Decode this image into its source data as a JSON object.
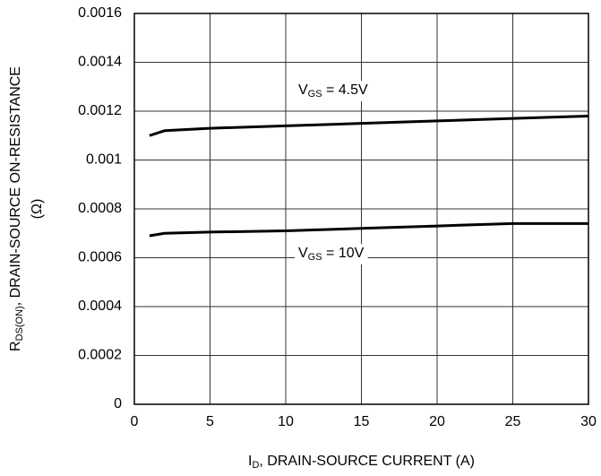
{
  "chart_data": {
    "type": "line",
    "y_label": {
      "main": "R",
      "sub": "DS(ON)",
      "rest": ", DRAIN-SOURCE ON-RESISTANCE",
      "line2": "(Ω)"
    },
    "x_label": {
      "main": "I",
      "sub": "D",
      "rest": ", DRAIN-SOURCE CURRENT (A)"
    },
    "annotations": [
      {
        "main": "V",
        "sub": "GS",
        "rest": " = 4.5V"
      },
      {
        "main": "V",
        "sub": "GS",
        "rest": " = 10V"
      }
    ],
    "x": [
      1,
      2,
      5,
      10,
      15,
      20,
      25,
      30
    ],
    "series": [
      {
        "name": "VGS = 4.5V",
        "color": "#000000",
        "values": [
          0.0011,
          0.00112,
          0.00113,
          0.00114,
          0.00115,
          0.00116,
          0.00117,
          0.00118
        ]
      },
      {
        "name": "VGS = 10V",
        "color": "#000000",
        "values": [
          0.00069,
          0.0007,
          0.000705,
          0.00071,
          0.00072,
          0.00073,
          0.00074,
          0.00074
        ]
      }
    ],
    "xlim": [
      0,
      30
    ],
    "xticks": [
      0,
      5,
      10,
      15,
      20,
      25,
      30
    ],
    "ylim": [
      0,
      0.0016
    ],
    "yticks": [
      0,
      0.0002,
      0.0004,
      0.0006,
      0.0008,
      0.001,
      0.0012,
      0.0014,
      0.0016
    ],
    "grid": true
  }
}
